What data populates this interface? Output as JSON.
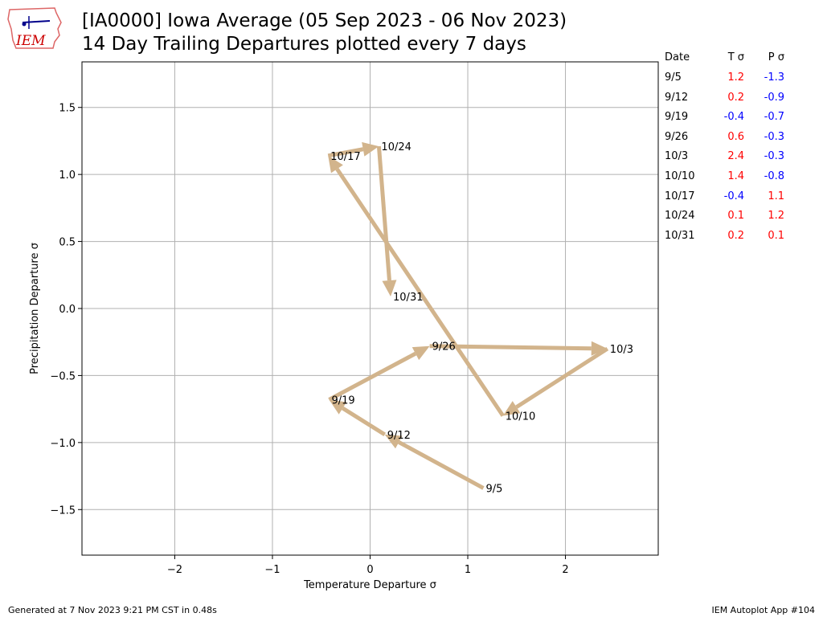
{
  "logo": {
    "text": "IEM"
  },
  "title_line1": "[IA0000] Iowa Average (05 Sep 2023 - 06 Nov 2023)",
  "title_line2": "14 Day Trailing Departures plotted every 7 days",
  "footer_left": "Generated at 7 Nov 2023 9:21 PM CST in 0.48s",
  "footer_right": "IEM Autoplot App #104",
  "colors": {
    "arrow": "#d2b48c",
    "positive": "#ff0000",
    "negative": "#0000ff",
    "grid": "#b0b0b0"
  },
  "table": {
    "headers": {
      "date": "Date",
      "temp": "T σ",
      "precip": "P σ"
    },
    "rows": [
      {
        "date": "9/5",
        "t": "1.2",
        "p": "-1.3"
      },
      {
        "date": "9/12",
        "t": "0.2",
        "p": "-0.9"
      },
      {
        "date": "9/19",
        "t": "-0.4",
        "p": "-0.7"
      },
      {
        "date": "9/26",
        "t": "0.6",
        "p": "-0.3"
      },
      {
        "date": "10/3",
        "t": "2.4",
        "p": "-0.3"
      },
      {
        "date": "10/10",
        "t": "1.4",
        "p": "-0.8"
      },
      {
        "date": "10/17",
        "t": "-0.4",
        "p": "1.1"
      },
      {
        "date": "10/24",
        "t": "0.1",
        "p": "1.2"
      },
      {
        "date": "10/31",
        "t": "0.2",
        "p": "0.1"
      }
    ]
  },
  "chart_data": {
    "type": "line",
    "title": "[IA0000] Iowa Average (05 Sep 2023 - 06 Nov 2023)",
    "subtitle": "14 Day Trailing Departures plotted every 7 days",
    "xlabel": "Temperature Departure σ",
    "ylabel": "Precipitation Departure σ",
    "xlim": [
      -2.95,
      2.95
    ],
    "ylim": [
      -1.84,
      1.84
    ],
    "xticks": [
      -2,
      -1,
      0,
      1,
      2
    ],
    "xtick_labels": [
      "−2",
      "−1",
      "0",
      "1",
      "2"
    ],
    "yticks": [
      -1.5,
      -1.0,
      -0.5,
      0.0,
      0.5,
      1.0,
      1.5
    ],
    "ytick_labels": [
      "−1.5",
      "−1.0",
      "−0.5",
      "0.0",
      "0.5",
      "1.0",
      "1.5"
    ],
    "grid": true,
    "points": [
      {
        "label": "9/5",
        "x": 1.16,
        "y": -1.34
      },
      {
        "label": "9/12",
        "x": 0.15,
        "y": -0.94
      },
      {
        "label": "9/19",
        "x": -0.42,
        "y": -0.68
      },
      {
        "label": "9/26",
        "x": 0.61,
        "y": -0.28
      },
      {
        "label": "10/3",
        "x": 2.43,
        "y": -0.3
      },
      {
        "label": "10/10",
        "x": 1.36,
        "y": -0.8
      },
      {
        "label": "10/17",
        "x": -0.43,
        "y": 1.14
      },
      {
        "label": "10/24",
        "x": 0.09,
        "y": 1.21
      },
      {
        "label": "10/31",
        "x": 0.21,
        "y": 0.09
      }
    ]
  }
}
